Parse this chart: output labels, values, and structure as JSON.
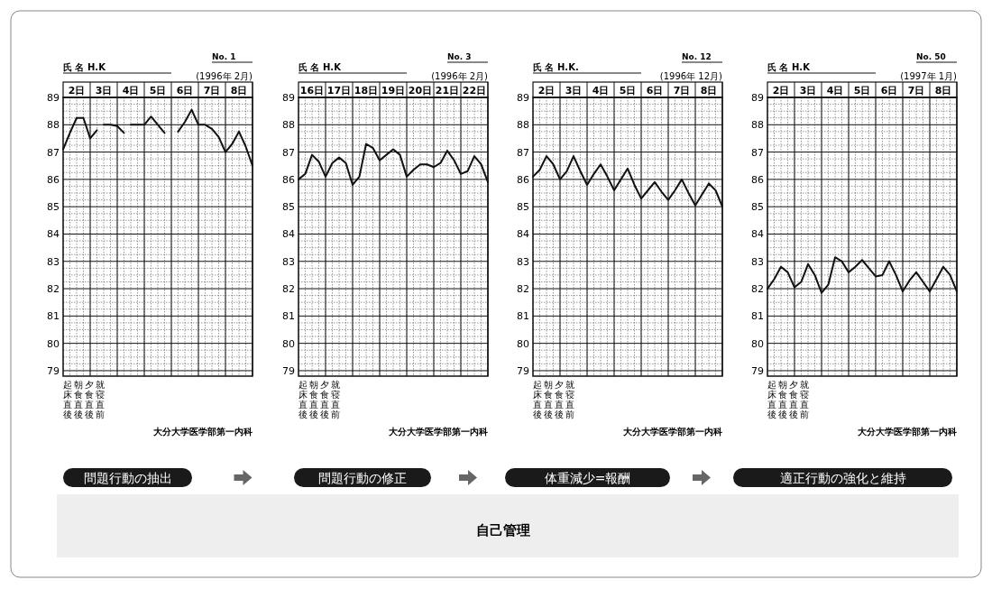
{
  "chart_data": [
    {
      "type": "line",
      "title": "No. 1",
      "subtitle": "(1996年 2月)",
      "annotations": [
        "氏 名 H.K",
        "起床直後",
        "朝食直後",
        "夕食直後",
        "就寝直前",
        "大分大学医学部第一内科"
      ],
      "categories": [
        null,
        null,
        "2日",
        null,
        null,
        null,
        "3日",
        null,
        null,
        null,
        "4日",
        null,
        null,
        null,
        "5日",
        null,
        null,
        null,
        "6日",
        null,
        null,
        null,
        "7日",
        null,
        null,
        null,
        "8日",
        null,
        null
      ],
      "series": [
        {
          "color": "#111111",
          "values": [
            87.1,
            87.7,
            88.25,
            88.25,
            87.5,
            87.8,
            null,
            null,
            null,
            null,
            null,
            null,
            null,
            null,
            null,
            null,
            null,
            null,
            null,
            null,
            null,
            null,
            null,
            null,
            null,
            null,
            null,
            null,
            null
          ]
        },
        {
          "color": "#111111",
          "values": [
            null,
            null,
            null,
            null,
            null,
            null,
            88.0,
            88.0,
            87.95,
            87.7,
            null,
            null,
            null,
            null,
            null,
            null,
            null,
            null,
            null,
            null,
            null,
            null,
            null,
            null,
            null,
            null,
            null,
            null,
            null
          ]
        },
        {
          "color": "#111111",
          "values": [
            null,
            null,
            null,
            null,
            null,
            null,
            null,
            null,
            null,
            null,
            88.0,
            88.0,
            88.0,
            88.3,
            88.0,
            87.7,
            null,
            null,
            null,
            null,
            null,
            null,
            null,
            null,
            null,
            null,
            null,
            null,
            null
          ]
        },
        {
          "color": "#111111",
          "values": [
            null,
            null,
            null,
            null,
            null,
            null,
            null,
            null,
            null,
            null,
            null,
            null,
            null,
            null,
            null,
            null,
            null,
            87.75,
            88.1,
            88.55,
            88.0,
            88.0,
            87.85,
            87.55,
            87.0,
            87.3,
            87.75,
            87.2,
            86.5
          ]
        }
      ],
      "ylim": [
        78.8,
        89
      ],
      "yticks": [
        79,
        80,
        81,
        82,
        83,
        84,
        85,
        86,
        87,
        88,
        89
      ],
      "grid": true
    },
    {
      "type": "line",
      "title": "No. 3",
      "subtitle": "(1996年 2月)",
      "annotations": [
        "氏 名 H.K",
        "起床直後",
        "朝食直後",
        "夕食直後",
        "就寝直前",
        "大分大学医学部第一内科"
      ],
      "categories": [
        null,
        null,
        "16日",
        null,
        null,
        null,
        "17日",
        null,
        null,
        null,
        "18日",
        null,
        null,
        null,
        "19日",
        null,
        null,
        null,
        "20日",
        null,
        null,
        null,
        "21日",
        null,
        null,
        null,
        "22日",
        null,
        null
      ],
      "series": [
        {
          "color": "#111111",
          "values": [
            86.0,
            86.2,
            86.9,
            86.65,
            86.1,
            86.6,
            86.8,
            86.6,
            85.8,
            86.1,
            87.3,
            87.15,
            86.7,
            86.9,
            87.1,
            86.9,
            86.1,
            86.35,
            86.55,
            86.55,
            86.45,
            86.6,
            87.05,
            86.7,
            86.2,
            86.3,
            86.85,
            86.55,
            85.9
          ]
        }
      ],
      "ylim": [
        78.8,
        89
      ],
      "yticks": [
        79,
        80,
        81,
        82,
        83,
        84,
        85,
        86,
        87,
        88,
        89
      ],
      "grid": true
    },
    {
      "type": "line",
      "title": "No. 12",
      "subtitle": "(1996年 12月)",
      "annotations": [
        "氏 名 H.K.",
        "起床直後",
        "朝食直後",
        "夕食直後",
        "就寝直前",
        "大分大学医学部第一内科"
      ],
      "categories": [
        null,
        null,
        "2日",
        null,
        null,
        null,
        "3日",
        null,
        null,
        null,
        "4日",
        null,
        null,
        null,
        "5日",
        null,
        null,
        null,
        "6日",
        null,
        null,
        null,
        "7日",
        null,
        null,
        null,
        "8日",
        null,
        null
      ],
      "series": [
        {
          "color": "#111111",
          "values": [
            86.1,
            86.35,
            86.85,
            86.55,
            86.0,
            86.3,
            86.85,
            86.3,
            85.8,
            86.2,
            86.55,
            86.1,
            85.6,
            86.0,
            86.4,
            85.8,
            85.3,
            85.6,
            85.9,
            85.55,
            85.25,
            85.6,
            86.0,
            85.5,
            85.05,
            85.45,
            85.85,
            85.6,
            85.0
          ]
        }
      ],
      "ylim": [
        78.8,
        89
      ],
      "yticks": [
        79,
        80,
        81,
        82,
        83,
        84,
        85,
        86,
        87,
        88,
        89
      ],
      "grid": true
    },
    {
      "type": "line",
      "title": "No. 50",
      "subtitle": "(1997年 1月)",
      "annotations": [
        "氏 名 H.K",
        "起床直後",
        "朝食直後",
        "夕食直後",
        "就寝直前",
        "大分大学医学部第一内科"
      ],
      "categories": [
        null,
        null,
        "2日",
        null,
        null,
        null,
        "3日",
        null,
        null,
        null,
        "4日",
        null,
        null,
        null,
        "5日",
        null,
        null,
        null,
        "6日",
        null,
        null,
        null,
        "7日",
        null,
        null,
        null,
        "8日",
        null,
        null
      ],
      "series": [
        {
          "color": "#111111",
          "values": [
            82.0,
            82.35,
            82.8,
            82.6,
            82.05,
            82.25,
            82.9,
            82.5,
            81.85,
            82.15,
            83.15,
            83.0,
            82.6,
            82.8,
            83.05,
            82.75,
            82.45,
            82.5,
            83.0,
            82.5,
            81.9,
            82.3,
            82.6,
            82.25,
            81.9,
            82.35,
            82.8,
            82.5,
            81.9
          ]
        }
      ],
      "ylim": [
        78.8,
        89
      ],
      "yticks": [
        79,
        80,
        81,
        82,
        83,
        84,
        85,
        86,
        87,
        88,
        89
      ],
      "grid": true
    },
    {
      "type": "other",
      "annotations": [
        "問題行動の抽出",
        "問題行動の修正",
        "体重減少=報酬",
        "適正行動の強化と維持",
        "自己管理"
      ]
    }
  ]
}
